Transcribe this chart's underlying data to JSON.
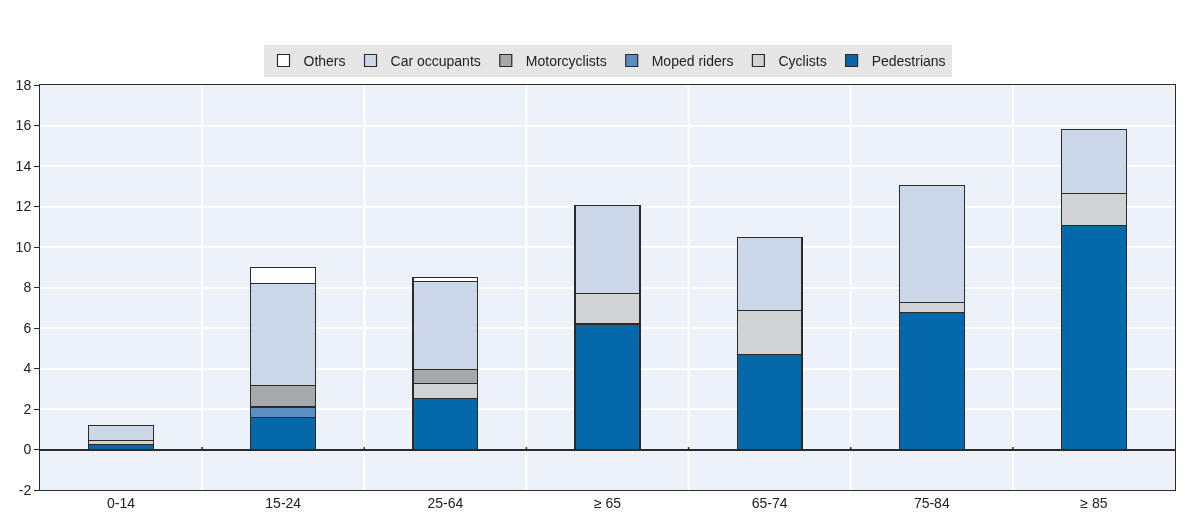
{
  "chart_data": {
    "type": "bar",
    "stacked": true,
    "categories": [
      "0-14",
      "15-24",
      "25-64",
      "≥ 65",
      "65-74",
      "75-84",
      "≥ 85"
    ],
    "series": [
      {
        "name": "Pedestrians",
        "color": "#0568aa",
        "values": [
          0.25,
          1.6,
          2.5,
          6.2,
          4.7,
          6.75,
          11.05
        ]
      },
      {
        "name": "Cyclists",
        "color": "#d0d2d4",
        "values": [
          0.2,
          null,
          0.75,
          1.5,
          2.15,
          0.5,
          1.6
        ]
      },
      {
        "name": "Moped riders",
        "color": "#5b8dc4",
        "values": [
          null,
          0.5,
          null,
          null,
          null,
          null,
          null
        ]
      },
      {
        "name": "Motorcyclists",
        "color": "#a6a8ab",
        "values": [
          null,
          1.05,
          0.7,
          null,
          null,
          null,
          null
        ]
      },
      {
        "name": "Car occupants",
        "color": "#ccd7ea",
        "values": [
          0.75,
          5.05,
          4.35,
          4.35,
          3.6,
          5.8,
          3.15
        ]
      },
      {
        "name": "Others",
        "color": "#ffffff",
        "values": [
          null,
          0.8,
          0.2,
          null,
          null,
          null,
          null
        ]
      }
    ],
    "ylim": [
      -2,
      18
    ],
    "yticks": [
      -2,
      0,
      2,
      4,
      6,
      8,
      10,
      12,
      14,
      16,
      18
    ],
    "grid": true,
    "legend": "top"
  }
}
